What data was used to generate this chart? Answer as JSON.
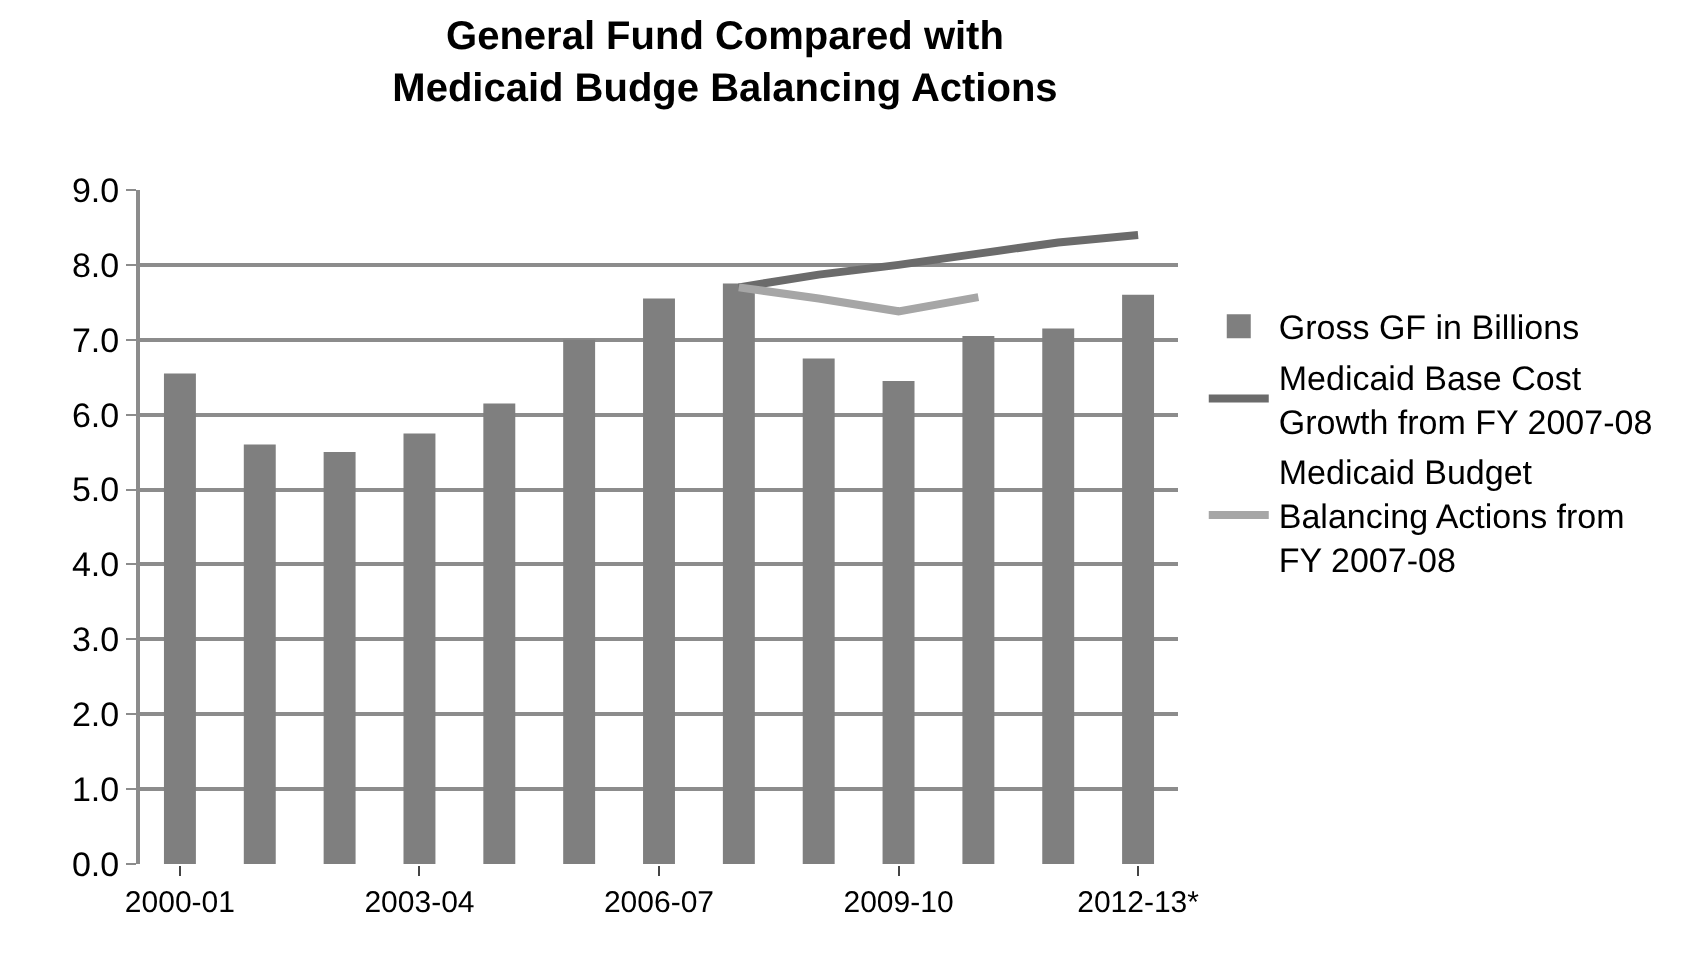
{
  "chart_data": {
    "type": "bar",
    "title": "General Fund Compared with Medicaid Budge Balancing Actions",
    "categories": [
      "2000-01",
      null,
      null,
      "2003-04",
      null,
      null,
      "2006-07",
      null,
      null,
      "2009-10",
      null,
      null,
      "2012-13*"
    ],
    "series": [
      {
        "name": "Gross GF in Billions",
        "color": "#7f7f7f",
        "values": [
          6.55,
          5.6,
          5.5,
          5.75,
          6.15,
          7.0,
          7.55,
          7.75,
          6.75,
          6.45,
          7.05,
          7.15,
          7.6
        ]
      },
      {
        "name": "Medicaid Base Cost Growth from FY 2007-08",
        "type": "line",
        "color": "#6b6b6b",
        "values": [
          null,
          null,
          null,
          null,
          null,
          null,
          null,
          7.7,
          7.87,
          8.0,
          8.15,
          8.3,
          8.4
        ]
      },
      {
        "name": "Medicaid Budget Balancing Actions from FY 2007-08",
        "type": "line",
        "color": "#a6a6a6",
        "values": [
          null,
          null,
          null,
          null,
          null,
          null,
          null,
          7.7,
          7.55,
          7.38,
          7.57,
          null,
          null
        ]
      }
    ],
    "ylim": [
      0,
      9
    ],
    "yticks": [
      {
        "value": 0,
        "label": "0.0"
      },
      {
        "value": 1,
        "label": "1.0"
      },
      {
        "value": 2,
        "label": "2.0"
      },
      {
        "value": 3,
        "label": "3.0"
      },
      {
        "value": 4,
        "label": "4.0"
      },
      {
        "value": 5,
        "label": "5.0"
      },
      {
        "value": 6,
        "label": "6.0"
      },
      {
        "value": 7,
        "label": "7.0"
      },
      {
        "value": 8,
        "label": "8.0"
      },
      {
        "value": 9,
        "label": "9.0"
      }
    ],
    "grid": "y",
    "legend": "right",
    "marker": "none",
    "line_style": "solid"
  }
}
